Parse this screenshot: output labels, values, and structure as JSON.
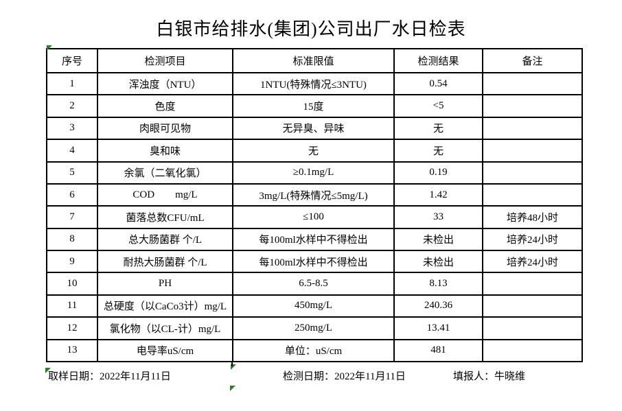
{
  "title": "白银市给排水(集团)公司出厂水日检表",
  "table": {
    "headers": [
      "序号",
      "检测项目",
      "标准限值",
      "检测结果",
      "备注"
    ],
    "rows": [
      {
        "no": "1",
        "item": "浑浊度（NTU）",
        "limit": "1NTU(特殊情况≤3NTU)",
        "result": "0.54",
        "remark": ""
      },
      {
        "no": "2",
        "item": "色度",
        "limit": "15度",
        "result": "<5",
        "remark": ""
      },
      {
        "no": "3",
        "item": "肉眼可见物",
        "limit": "无异臭、异味",
        "result": "无",
        "remark": ""
      },
      {
        "no": "4",
        "item": "臭和味",
        "limit": "无",
        "result": "无",
        "remark": ""
      },
      {
        "no": "5",
        "item": "余氯（二氧化氯）",
        "limit": "≥0.1mg/L",
        "result": "0.19",
        "remark": ""
      },
      {
        "no": "6",
        "item": "COD        mg/L",
        "limit": "3mg/L(特殊情况≤5mg/L)",
        "result": "1.42",
        "remark": ""
      },
      {
        "no": "7",
        "item": "菌落总数CFU/mL",
        "limit": "≤100",
        "result": "33",
        "remark": "培养48小时"
      },
      {
        "no": "8",
        "item": "总大肠菌群 个/L",
        "limit": "每100ml水样中不得检出",
        "result": "未检出",
        "remark": "培养24小时"
      },
      {
        "no": "9",
        "item": "耐热大肠菌群 个/L",
        "limit": "每100ml水样中不得检出",
        "result": "未检出",
        "remark": "培养24小时"
      },
      {
        "no": "10",
        "item": "PH",
        "limit": "6.5-8.5",
        "result": "8.13",
        "remark": ""
      },
      {
        "no": "11",
        "item": "总硬度（以CaCo3计）mg/L",
        "limit": "450mg/L",
        "result": "240.36",
        "remark": ""
      },
      {
        "no": "12",
        "item": "氯化物（以CL-计）mg/L",
        "limit": "250mg/L",
        "result": "13.41",
        "remark": ""
      },
      {
        "no": "13",
        "item": "电导率uS/cm",
        "limit": "单位：uS/cm",
        "result": "481",
        "remark": ""
      }
    ]
  },
  "footer": {
    "sampling_date": "取样日期：2022年11月11日",
    "test_date": "检测日期：2022年11月11日",
    "reporter": "填报人：牛晓维"
  },
  "colors": {
    "marker_green": "#2a7e2a",
    "ink": "#000000"
  }
}
